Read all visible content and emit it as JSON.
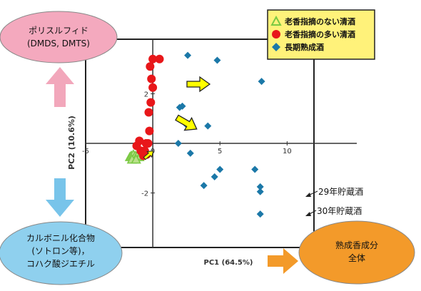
{
  "colors": {
    "pink_fill": "#f4a9be",
    "pink_arrow": "#f2a7bb",
    "blue_fill": "#8fd0ee",
    "blue_arrow": "#78c4ea",
    "orange_fill": "#f39a2a",
    "legend_bg": "#fff27a",
    "green": "#7ac943",
    "red": "#e8171a",
    "teal": "#1b78a8",
    "yellow_arrow": "#ffff00"
  },
  "bubbles": {
    "top_left": [
      "ポリスルフィド",
      "(DMDS, DMTS)"
    ],
    "bottom_left": [
      "カルボニル化合物",
      "(ソトロン等)，",
      "コハク酸ジエチル"
    ],
    "bottom_right": [
      "熟成香成分",
      "全体"
    ]
  },
  "chart_data": {
    "type": "scatter",
    "xlabel": "PC1 (64.5%)",
    "ylabel": "PC2 (10.6%)",
    "xlim": [
      -5,
      12
    ],
    "ylim": [
      -4.2,
      4.2
    ],
    "x_ticks": [
      {
        "value": -5,
        "label": "-5"
      },
      {
        "value": 0,
        "label": "0"
      },
      {
        "value": 5,
        "label": "5"
      },
      {
        "value": 10,
        "label": "10"
      }
    ],
    "y_ticks": [
      {
        "value": 2,
        "label": "2"
      },
      {
        "value": 0,
        "label": "0"
      },
      {
        "value": -2,
        "label": "-2"
      }
    ],
    "legend_position": "top-right",
    "series": [
      {
        "name": "老香指摘のない清酒",
        "marker": "triangle",
        "color": "#7ac943",
        "points": [
          [
            -1.7,
            -0.55
          ],
          [
            -1.6,
            -0.5
          ],
          [
            -1.5,
            -0.55
          ],
          [
            -1.45,
            -0.45
          ],
          [
            -1.35,
            -0.6
          ],
          [
            -1.3,
            -0.5
          ],
          [
            -1.2,
            -0.55
          ],
          [
            -1.1,
            -0.45
          ],
          [
            -1.0,
            -0.55
          ],
          [
            -0.9,
            -0.5
          ],
          [
            -1.55,
            -0.65
          ],
          [
            -1.25,
            -0.65
          ]
        ]
      },
      {
        "name": "老香指摘の多い清酒",
        "marker": "circle",
        "color": "#e8171a",
        "points": [
          [
            0.5,
            3.4
          ],
          [
            0.0,
            3.4
          ],
          [
            -0.2,
            3.1
          ],
          [
            -0.1,
            2.6
          ],
          [
            0.0,
            2.25
          ],
          [
            -0.15,
            1.65
          ],
          [
            -0.3,
            1.25
          ],
          [
            -0.25,
            0.5
          ],
          [
            -0.35,
            0.0
          ],
          [
            -0.5,
            0.0
          ],
          [
            -0.45,
            -0.45
          ],
          [
            -0.7,
            -0.5
          ],
          [
            -0.9,
            -0.3
          ],
          [
            -0.6,
            -0.3
          ],
          [
            -1.2,
            -0.1
          ],
          [
            -1.0,
            0.1
          ]
        ]
      },
      {
        "name": "長期熟成酒",
        "marker": "diamond",
        "color": "#1b78a8",
        "points": [
          [
            2.6,
            3.55
          ],
          [
            4.8,
            3.35
          ],
          [
            8.1,
            2.5
          ],
          [
            2.0,
            1.45
          ],
          [
            2.2,
            1.5
          ],
          [
            2.5,
            0.75
          ],
          [
            4.1,
            0.7
          ],
          [
            1.9,
            0.0
          ],
          [
            2.8,
            -0.4
          ],
          [
            5.0,
            -1.05
          ],
          [
            4.6,
            -1.35
          ],
          [
            7.6,
            -1.05
          ],
          [
            3.8,
            -1.7
          ],
          [
            8.0,
            -1.75
          ],
          [
            8.0,
            -1.95
          ],
          [
            8.0,
            -2.85
          ]
        ]
      }
    ],
    "annotations": [
      "29年貯蔵酒",
      "30年貯蔵酒"
    ]
  }
}
